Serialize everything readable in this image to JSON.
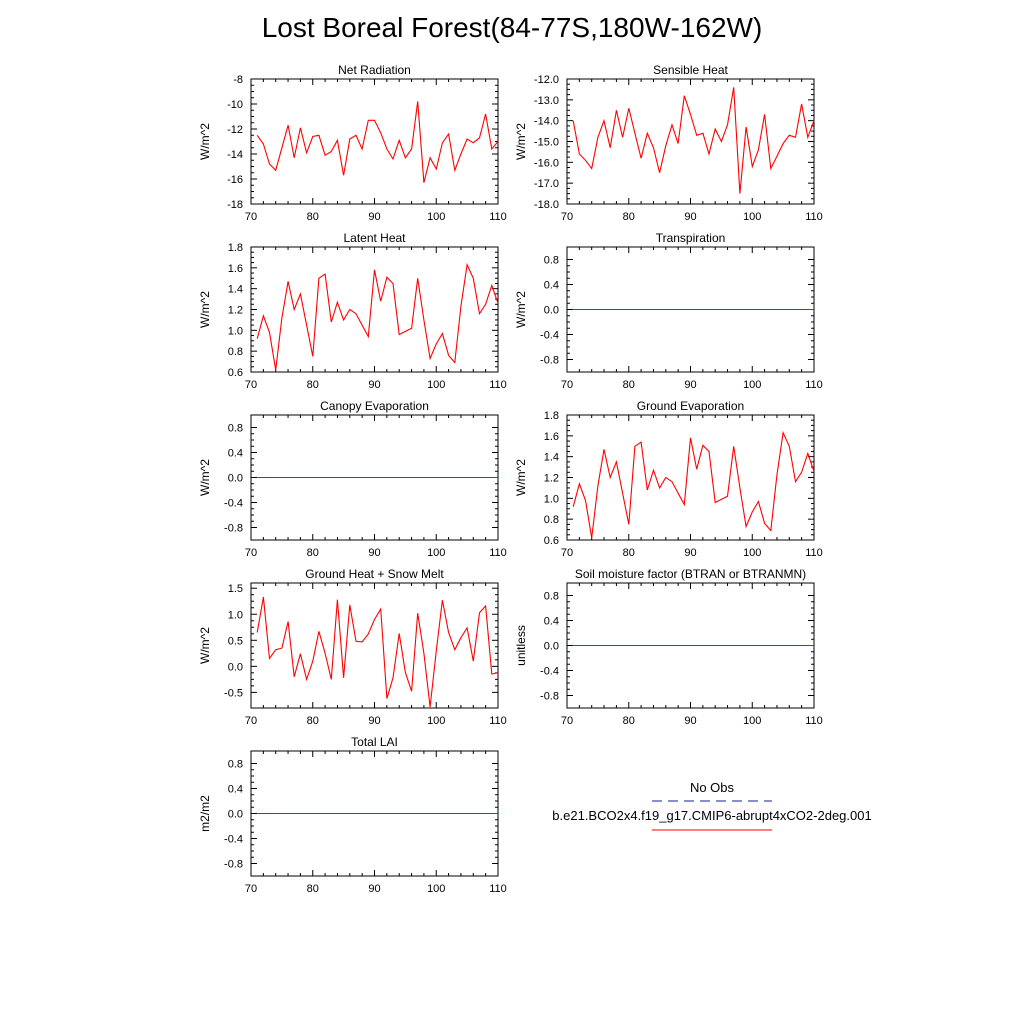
{
  "title": "Lost Boreal Forest(84-77S,180W-162W)",
  "colors": {
    "model": "#ff0000",
    "obs": "#1a1aa0",
    "axis": "#000000"
  },
  "legend": {
    "obs_label": "No Obs",
    "model_label": "b.e21.BCO2x4.f19_g17.CMIP6-abrupt4xCO2-2deg.001"
  },
  "chart_data": [
    {
      "type": "line",
      "title": "Net Radiation",
      "ylabel": "W/m^2",
      "xlim": [
        70,
        110
      ],
      "ylim": [
        -18,
        -8
      ],
      "xticks": [
        70,
        80,
        90,
        100,
        110
      ],
      "xtick_labels": [
        "70",
        "80",
        "90",
        "100",
        "110"
      ],
      "yticks": [
        -18,
        -16,
        -14,
        -12,
        -10,
        -8
      ],
      "ytick_labels": [
        "-18",
        "-16",
        "-14",
        "-12",
        "-10",
        "-8"
      ],
      "x": [
        71,
        72,
        73,
        74,
        75,
        76,
        77,
        78,
        79,
        80,
        81,
        82,
        83,
        84,
        85,
        86,
        87,
        88,
        89,
        90,
        91,
        92,
        93,
        94,
        95,
        96,
        97,
        98,
        99,
        100,
        101,
        102,
        103,
        104,
        105,
        106,
        107,
        108,
        109,
        110
      ],
      "values": [
        -12.5,
        -13.2,
        -14.8,
        -15.3,
        -13.5,
        -11.7,
        -14.3,
        -11.9,
        -13.9,
        -12.6,
        -12.5,
        -14.1,
        -13.8,
        -12.9,
        -15.7,
        -12.8,
        -12.5,
        -13.6,
        -11.3,
        -11.3,
        -12.3,
        -13.6,
        -14.4,
        -12.9,
        -14.3,
        -13.6,
        -9.8,
        -16.3,
        -14.3,
        -15.2,
        -13.1,
        -12.4,
        -15.3,
        -14.0,
        -12.8,
        -13.1,
        -12.7,
        -10.8,
        -13.6,
        -13.0
      ]
    },
    {
      "type": "line",
      "title": "Sensible Heat",
      "ylabel": "W/m^2",
      "xlim": [
        70,
        110
      ],
      "ylim": [
        -18,
        -12
      ],
      "xticks": [
        70,
        80,
        90,
        100,
        110
      ],
      "xtick_labels": [
        "70",
        "80",
        "90",
        "100",
        "110"
      ],
      "yticks": [
        -18,
        -17,
        -16,
        -15,
        -14,
        -13,
        -12
      ],
      "ytick_labels": [
        "-18.0",
        "-17.0",
        "-16.0",
        "-15.0",
        "-14.0",
        "-13.0",
        "-12.0"
      ],
      "x": [
        71,
        72,
        73,
        74,
        75,
        76,
        77,
        78,
        79,
        80,
        81,
        82,
        83,
        84,
        85,
        86,
        87,
        88,
        89,
        90,
        91,
        92,
        93,
        94,
        95,
        96,
        97,
        98,
        99,
        100,
        101,
        102,
        103,
        104,
        105,
        106,
        107,
        108,
        109,
        110
      ],
      "values": [
        -14.0,
        -15.6,
        -15.9,
        -16.3,
        -14.8,
        -14.0,
        -15.3,
        -13.5,
        -14.8,
        -13.4,
        -14.6,
        -15.8,
        -14.6,
        -15.3,
        -16.5,
        -15.2,
        -14.2,
        -15.1,
        -12.8,
        -13.7,
        -14.7,
        -14.6,
        -15.6,
        -14.4,
        -15.0,
        -14.2,
        -12.4,
        -17.5,
        -14.3,
        -16.2,
        -15.4,
        -13.7,
        -16.3,
        -15.7,
        -15.1,
        -14.7,
        -14.8,
        -13.2,
        -14.8,
        -14.0
      ]
    },
    {
      "type": "line",
      "title": "Latent Heat",
      "ylabel": "W/m^2",
      "xlim": [
        70,
        110
      ],
      "ylim": [
        0.6,
        1.8
      ],
      "xticks": [
        70,
        80,
        90,
        100,
        110
      ],
      "xtick_labels": [
        "70",
        "80",
        "90",
        "100",
        "110"
      ],
      "yticks": [
        0.6,
        0.8,
        1.0,
        1.2,
        1.4,
        1.6,
        1.8
      ],
      "ytick_labels": [
        "0.6",
        "0.8",
        "1.0",
        "1.2",
        "1.4",
        "1.6",
        "1.8"
      ],
      "x": [
        71,
        72,
        73,
        74,
        75,
        76,
        77,
        78,
        79,
        80,
        81,
        82,
        83,
        84,
        85,
        86,
        87,
        88,
        89,
        90,
        91,
        92,
        93,
        94,
        95,
        96,
        97,
        98,
        99,
        100,
        101,
        102,
        103,
        104,
        105,
        106,
        107,
        108,
        109,
        110
      ],
      "values": [
        0.92,
        1.14,
        0.98,
        0.62,
        1.12,
        1.47,
        1.2,
        1.35,
        1.05,
        0.75,
        1.5,
        1.54,
        1.08,
        1.27,
        1.1,
        1.2,
        1.16,
        1.05,
        0.94,
        1.58,
        1.28,
        1.51,
        1.45,
        0.96,
        0.99,
        1.02,
        1.5,
        1.1,
        0.73,
        0.87,
        0.97,
        0.76,
        0.69,
        1.23,
        1.63,
        1.5,
        1.16,
        1.25,
        1.43,
        1.26
      ]
    },
    {
      "type": "line",
      "title": "Transpiration",
      "ylabel": "W/m^2",
      "xlim": [
        70,
        110
      ],
      "ylim": [
        -1,
        1
      ],
      "xticks": [
        70,
        80,
        90,
        100,
        110
      ],
      "xtick_labels": [
        "70",
        "80",
        "90",
        "100",
        "110"
      ],
      "yticks": [
        -0.8,
        -0.4,
        0.0,
        0.4,
        0.8
      ],
      "ytick_labels": [
        "-0.8",
        "-0.4",
        "0.0",
        "0.4",
        "0.8"
      ],
      "x": [
        71,
        110
      ],
      "values": [
        0,
        0
      ]
    },
    {
      "type": "line",
      "title": "Canopy Evaporation",
      "ylabel": "W/m^2",
      "xlim": [
        70,
        110
      ],
      "ylim": [
        -1,
        1
      ],
      "xticks": [
        70,
        80,
        90,
        100,
        110
      ],
      "xtick_labels": [
        "70",
        "80",
        "90",
        "100",
        "110"
      ],
      "yticks": [
        -0.8,
        -0.4,
        0.0,
        0.4,
        0.8
      ],
      "ytick_labels": [
        "-0.8",
        "-0.4",
        "0.0",
        "0.4",
        "0.8"
      ],
      "x": [
        71,
        110
      ],
      "values": [
        0,
        0
      ]
    },
    {
      "type": "line",
      "title": "Ground Evaporation",
      "ylabel": "W/m^2",
      "xlim": [
        70,
        110
      ],
      "ylim": [
        0.6,
        1.8
      ],
      "xticks": [
        70,
        80,
        90,
        100,
        110
      ],
      "xtick_labels": [
        "70",
        "80",
        "90",
        "100",
        "110"
      ],
      "yticks": [
        0.6,
        0.8,
        1.0,
        1.2,
        1.4,
        1.6,
        1.8
      ],
      "ytick_labels": [
        "0.6",
        "0.8",
        "1.0",
        "1.2",
        "1.4",
        "1.6",
        "1.8"
      ],
      "x": [
        71,
        72,
        73,
        74,
        75,
        76,
        77,
        78,
        79,
        80,
        81,
        82,
        83,
        84,
        85,
        86,
        87,
        88,
        89,
        90,
        91,
        92,
        93,
        94,
        95,
        96,
        97,
        98,
        99,
        100,
        101,
        102,
        103,
        104,
        105,
        106,
        107,
        108,
        109,
        110
      ],
      "values": [
        0.92,
        1.14,
        0.98,
        0.62,
        1.12,
        1.47,
        1.2,
        1.35,
        1.05,
        0.75,
        1.5,
        1.54,
        1.08,
        1.27,
        1.1,
        1.2,
        1.16,
        1.05,
        0.94,
        1.58,
        1.28,
        1.51,
        1.45,
        0.96,
        0.99,
        1.02,
        1.5,
        1.1,
        0.73,
        0.87,
        0.97,
        0.76,
        0.69,
        1.23,
        1.63,
        1.5,
        1.16,
        1.25,
        1.43,
        1.26
      ]
    },
    {
      "type": "line",
      "title": "Ground Heat + Snow Melt",
      "ylabel": "W/m^2",
      "xlim": [
        70,
        110
      ],
      "ylim": [
        -0.8,
        1.6
      ],
      "xticks": [
        70,
        80,
        90,
        100,
        110
      ],
      "xtick_labels": [
        "70",
        "80",
        "90",
        "100",
        "110"
      ],
      "yticks": [
        -0.5,
        0.0,
        0.5,
        1.0,
        1.5
      ],
      "ytick_labels": [
        "-0.5",
        "0.0",
        "0.5",
        "1.0",
        "1.5"
      ],
      "x": [
        71,
        72,
        73,
        74,
        75,
        76,
        77,
        78,
        79,
        80,
        81,
        82,
        83,
        84,
        85,
        86,
        87,
        88,
        89,
        90,
        91,
        92,
        93,
        94,
        95,
        96,
        97,
        98,
        99,
        100,
        101,
        102,
        103,
        104,
        105,
        106,
        107,
        108,
        109,
        110
      ],
      "values": [
        0.65,
        1.33,
        0.15,
        0.32,
        0.35,
        0.86,
        -0.2,
        0.24,
        -0.25,
        0.1,
        0.67,
        0.25,
        -0.25,
        1.28,
        -0.22,
        1.18,
        0.48,
        0.47,
        0.62,
        0.9,
        1.1,
        -0.62,
        -0.22,
        0.63,
        -0.12,
        -0.48,
        1.02,
        0.25,
        -0.78,
        0.3,
        1.27,
        0.65,
        0.32,
        0.55,
        0.74,
        0.1,
        1.03,
        1.16,
        -0.15,
        -0.12
      ]
    },
    {
      "type": "line",
      "title": "Soil moisture factor (BTRAN or BTRANMN)",
      "ylabel": "unitless",
      "xlim": [
        70,
        110
      ],
      "ylim": [
        -1,
        1
      ],
      "xticks": [
        70,
        80,
        90,
        100,
        110
      ],
      "xtick_labels": [
        "70",
        "80",
        "90",
        "100",
        "110"
      ],
      "yticks": [
        -0.8,
        -0.4,
        0.0,
        0.4,
        0.8
      ],
      "ytick_labels": [
        "-0.8",
        "-0.4",
        "0.0",
        "0.4",
        "0.8"
      ],
      "x": [
        71,
        110
      ],
      "values": [
        0,
        0
      ]
    },
    {
      "type": "line",
      "title": "Total LAI",
      "ylabel": "m2/m2",
      "xlim": [
        70,
        110
      ],
      "ylim": [
        -1,
        1
      ],
      "xticks": [
        70,
        80,
        90,
        100,
        110
      ],
      "xtick_labels": [
        "70",
        "80",
        "90",
        "100",
        "110"
      ],
      "yticks": [
        -0.8,
        -0.4,
        0.0,
        0.4,
        0.8
      ],
      "ytick_labels": [
        "-0.8",
        "-0.4",
        "0.0",
        "0.4",
        "0.8"
      ],
      "x": [
        71,
        110
      ],
      "values": [
        0,
        0
      ]
    }
  ]
}
